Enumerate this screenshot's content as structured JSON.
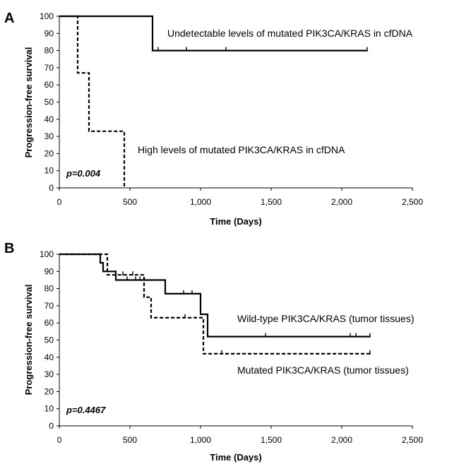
{
  "chart_data": [
    {
      "panel_label": "A",
      "type": "line",
      "title": "",
      "xlabel": "Time (Days)",
      "ylabel": "Progression-free survival",
      "xlim": [
        0,
        2500
      ],
      "ylim": [
        0,
        100
      ],
      "x_ticks": [
        "0",
        "500",
        "1,000",
        "1,500",
        "2,000",
        "2,500"
      ],
      "y_ticks": [
        "0",
        "10",
        "20",
        "30",
        "40",
        "50",
        "60",
        "70",
        "80",
        "90",
        "100"
      ],
      "grid": false,
      "series": [
        {
          "name": "Undetectable levels of mutated PIK3CA/KRAS  in cfDNA",
          "style": "solid",
          "color": "#000000",
          "steps": [
            [
              0,
              100
            ],
            [
              660,
              100
            ],
            [
              660,
              80
            ],
            [
              2180,
              80
            ]
          ],
          "censored": [
            [
              700,
              80
            ],
            [
              900,
              80
            ],
            [
              1180,
              80
            ],
            [
              2180,
              80
            ]
          ]
        },
        {
          "name": "High levels of mutated PIK3CA/KRAS  in cfDNA",
          "style": "dashed",
          "color": "#000000",
          "steps": [
            [
              0,
              100
            ],
            [
              130,
              100
            ],
            [
              130,
              67
            ],
            [
              210,
              67
            ],
            [
              210,
              33
            ],
            [
              460,
              33
            ],
            [
              460,
              0
            ]
          ],
          "censored": []
        }
      ],
      "annotation": "p=0.004"
    },
    {
      "panel_label": "B",
      "type": "line",
      "title": "",
      "xlabel": "Time (Days)",
      "ylabel": "Progression-free survival",
      "xlim": [
        0,
        2500
      ],
      "ylim": [
        0,
        100
      ],
      "x_ticks": [
        "0",
        "500",
        "1,000",
        "1,500",
        "2,000",
        "2,500"
      ],
      "y_ticks": [
        "0",
        "10",
        "20",
        "30",
        "40",
        "50",
        "60",
        "70",
        "80",
        "90",
        "100"
      ],
      "grid": false,
      "series": [
        {
          "name": "Wild-type PIK3CA/KRAS  (tumor tissues)",
          "style": "solid",
          "color": "#000000",
          "steps": [
            [
              0,
              100
            ],
            [
              290,
              100
            ],
            [
              290,
              95
            ],
            [
              310,
              95
            ],
            [
              310,
              90
            ],
            [
              400,
              90
            ],
            [
              400,
              85
            ],
            [
              750,
              85
            ],
            [
              750,
              77
            ],
            [
              1000,
              77
            ],
            [
              1000,
              65
            ],
            [
              1050,
              65
            ],
            [
              1050,
              52
            ],
            [
              2200,
              52
            ]
          ],
          "censored": [
            [
              480,
              85
            ],
            [
              540,
              85
            ],
            [
              570,
              85
            ],
            [
              880,
              77
            ],
            [
              940,
              77
            ],
            [
              1460,
              52
            ],
            [
              2060,
              52
            ],
            [
              2100,
              52
            ],
            [
              2200,
              52
            ]
          ]
        },
        {
          "name": "Mutated PIK3CA/KRAS  (tumor tissues)",
          "style": "dashed",
          "color": "#000000",
          "steps": [
            [
              0,
              100
            ],
            [
              340,
              100
            ],
            [
              340,
              88
            ],
            [
              600,
              88
            ],
            [
              600,
              75
            ],
            [
              650,
              75
            ],
            [
              650,
              63
            ],
            [
              1020,
              63
            ],
            [
              1020,
              42
            ],
            [
              2200,
              42
            ]
          ],
          "censored": [
            [
              450,
              88
            ],
            [
              520,
              88
            ],
            [
              890,
              63
            ],
            [
              1150,
              42
            ],
            [
              2200,
              42
            ]
          ]
        }
      ],
      "annotation": "p=0.4467"
    }
  ]
}
